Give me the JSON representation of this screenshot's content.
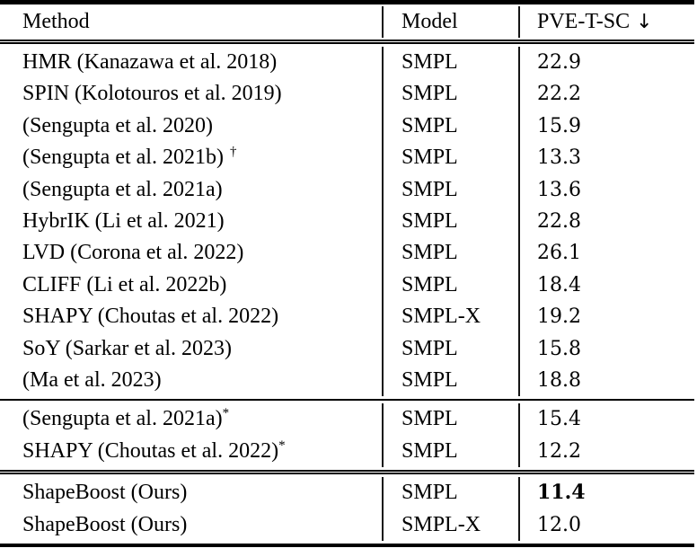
{
  "page": {
    "background_color": "#ffffff",
    "text_color": "#000000",
    "rule_color": "#000000"
  },
  "table": {
    "header": {
      "method": "Method",
      "model": "Model",
      "metric": "PVE-T-SC",
      "metric_arrow": "↓"
    },
    "sections": [
      {
        "rows": [
          {
            "method": "HMR (Kanazawa et al. 2018)",
            "model": "SMPL",
            "value": "22.9"
          },
          {
            "method": "SPIN (Kolotouros et al. 2019)",
            "model": "SMPL",
            "value": "22.2"
          },
          {
            "method": "(Sengupta et al. 2020)",
            "model": "SMPL",
            "value": "15.9"
          },
          {
            "method": "(Sengupta et al. 2021b)",
            "sup": "†",
            "model": "SMPL",
            "value": "13.3"
          },
          {
            "method": "(Sengupta et al. 2021a)",
            "model": "SMPL",
            "value": "13.6"
          },
          {
            "method": "HybrIK (Li et al. 2021)",
            "model": "SMPL",
            "value": "22.8"
          },
          {
            "method": "LVD (Corona et al. 2022)",
            "model": "SMPL",
            "value": "26.1"
          },
          {
            "method": "CLIFF (Li et al. 2022b)",
            "model": "SMPL",
            "value": "18.4"
          },
          {
            "method": "SHAPY (Choutas et al. 2022)",
            "model": "SMPL-X",
            "value": "19.2"
          },
          {
            "method": "SoY (Sarkar et al. 2023)",
            "model": "SMPL",
            "value": "15.8"
          },
          {
            "method": "(Ma et al. 2023)",
            "model": "SMPL",
            "value": "18.8"
          }
        ]
      },
      {
        "rows": [
          {
            "method": "(Sengupta et al. 2021a)",
            "sup": "*",
            "model": "SMPL",
            "value": "15.4"
          },
          {
            "method": "SHAPY (Choutas et al. 2022)",
            "sup": "*",
            "model": "SMPL",
            "value": "12.2"
          }
        ]
      },
      {
        "rows": [
          {
            "method": "ShapeBoost (Ours)",
            "model": "SMPL",
            "value": "11.4"
          },
          {
            "method": "ShapeBoost (Ours)",
            "model": "SMPL-X",
            "value": "12.0"
          }
        ]
      }
    ]
  }
}
